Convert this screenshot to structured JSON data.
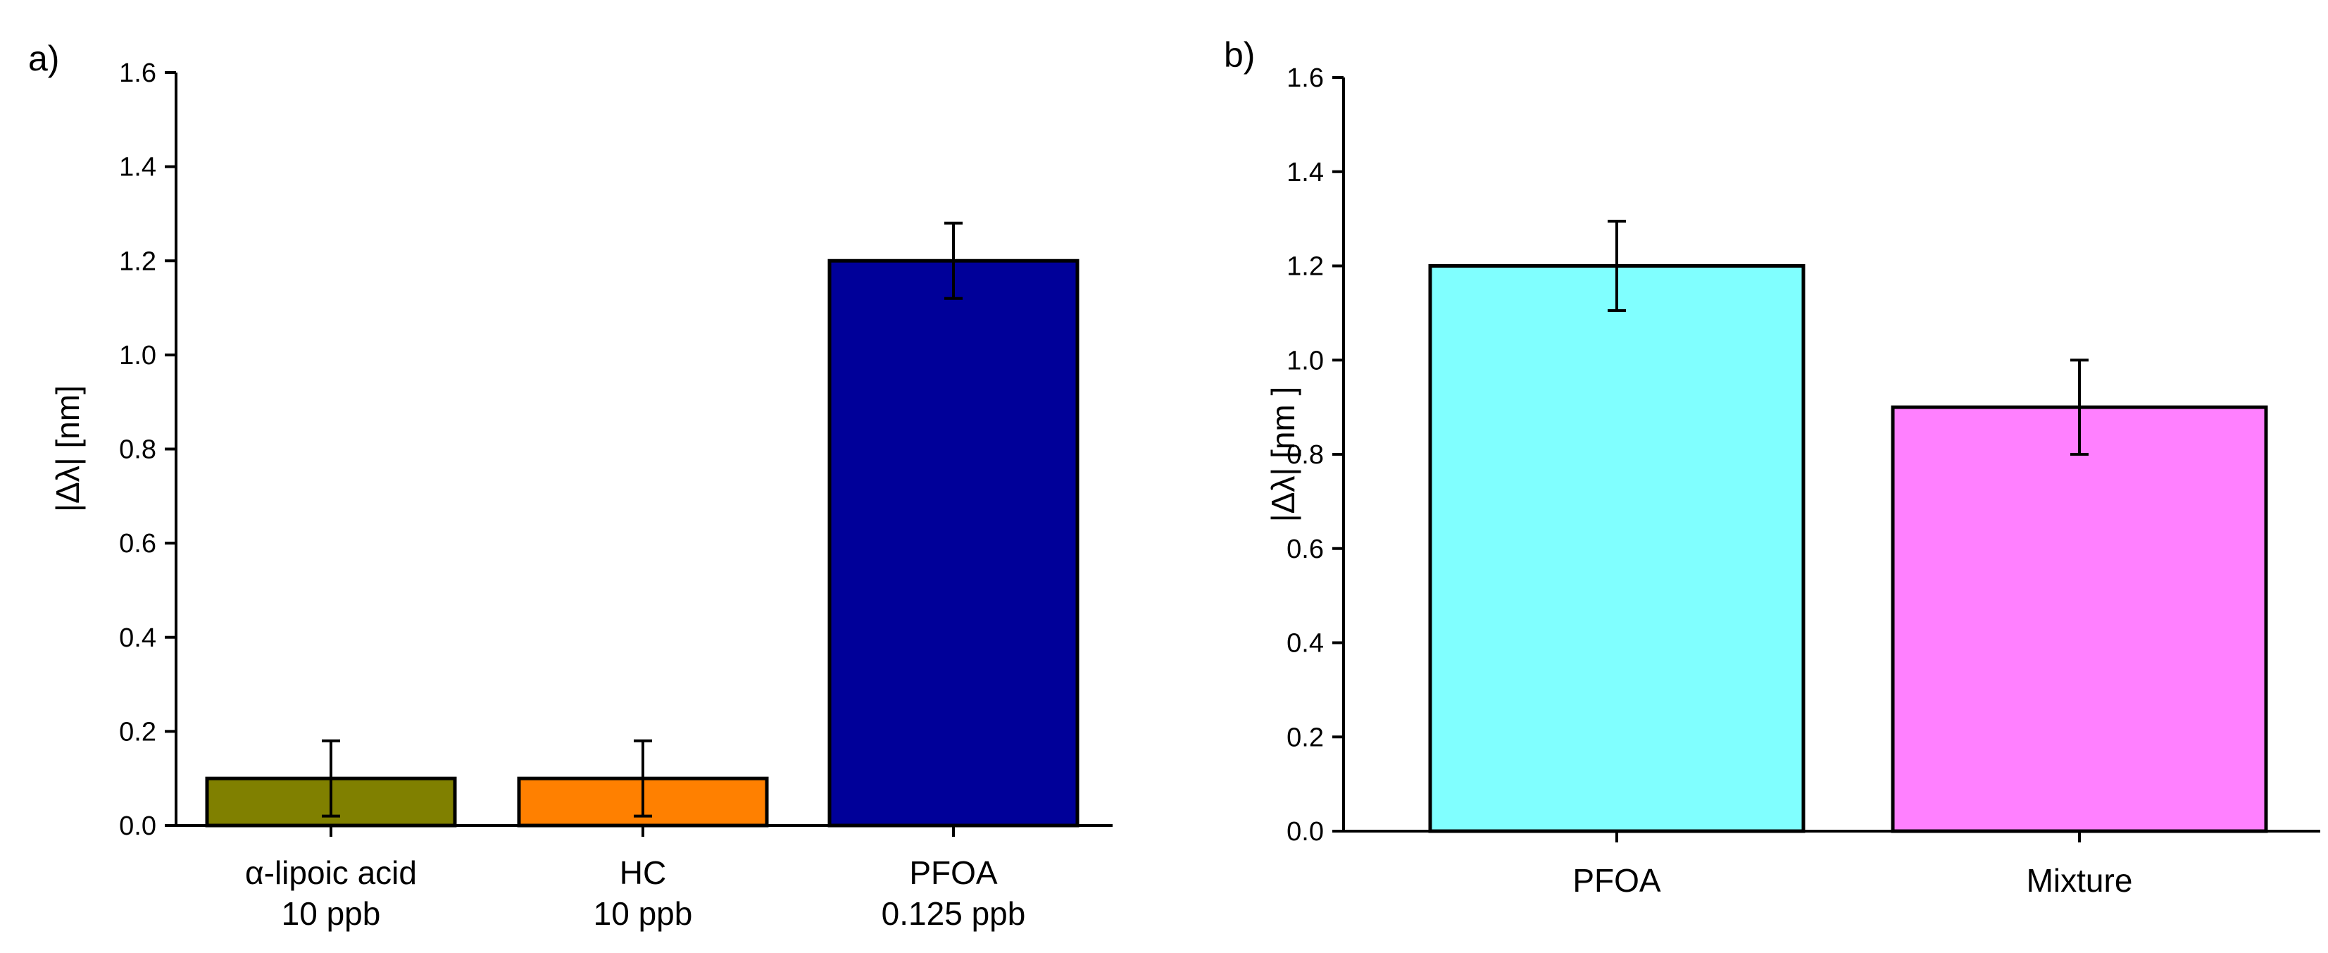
{
  "chart_data": [
    {
      "panel_label": "a)",
      "type": "bar",
      "ylabel": "|Δλ| [nm]",
      "ylim": [
        0,
        1.6
      ],
      "yticks": [
        "0.0",
        "0.2",
        "0.4",
        "0.6",
        "0.8",
        "1.0",
        "1.2",
        "1.4",
        "1.6"
      ],
      "categories": [
        {
          "line1": "α-lipoic acid",
          "line2": "10 ppb"
        },
        {
          "line1": "HC",
          "line2": "10 ppb"
        },
        {
          "line1": "PFOA",
          "line2": "0.125 ppb"
        }
      ],
      "values": [
        0.1,
        0.1,
        1.2
      ],
      "errors": [
        0.08,
        0.08,
        0.08
      ],
      "colors": [
        "#808000",
        "#ff8000",
        "#000099"
      ]
    },
    {
      "panel_label": "b)",
      "type": "bar",
      "ylabel": "|Δλ| [nm ]",
      "ylim": [
        0,
        1.6
      ],
      "yticks": [
        "0.0",
        "0.2",
        "0.4",
        "0.6",
        "0.8",
        "1.0",
        "1.2",
        "1.4",
        "1.6"
      ],
      "categories": [
        {
          "line1": "PFOA",
          "line2": ""
        },
        {
          "line1": "Mixture",
          "line2": ""
        }
      ],
      "values": [
        1.2,
        0.9
      ],
      "errors": [
        0.095,
        0.1
      ],
      "colors": [
        "#80ffff",
        "#ff80ff"
      ]
    }
  ]
}
